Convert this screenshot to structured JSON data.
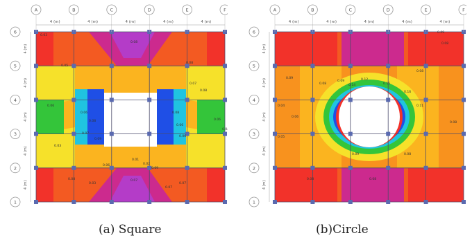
{
  "panels": [
    {
      "id": "a",
      "caption": "(a) Square",
      "opening": "square",
      "col_bubbles": [
        "A",
        "B",
        "C",
        "D",
        "E",
        "F"
      ],
      "row_bubbles": [
        "6",
        "5",
        "4",
        "3",
        "2",
        "1"
      ],
      "top_dims": [
        "4 (m)",
        "4 (m)",
        "4 (m)",
        "4 (m)",
        "4 (m)"
      ],
      "side_dims": [
        "4 (m)",
        "4 (m)",
        "4 (m)",
        "4 (m)",
        "4 (m)"
      ],
      "value_labels": [
        "0.03",
        "0.05",
        "0.08",
        "0.08",
        "0.07",
        "0.08",
        "0.06",
        "0.06",
        "0.08",
        "0.07",
        "0.09",
        "0.08",
        "0.06",
        "0.06",
        "0.06",
        "0.04",
        "0.03",
        "0.01",
        "0.02",
        "0.09",
        "0.06",
        "0.08",
        "0.03",
        "0.07",
        "0.07",
        "0.07"
      ]
    },
    {
      "id": "b",
      "caption": "(b)Circle",
      "opening": "circle",
      "col_bubbles": [
        "A",
        "B",
        "C",
        "D",
        "E",
        "F"
      ],
      "row_bubbles": [
        "6",
        "5",
        "4",
        "3",
        "2",
        "1"
      ],
      "top_dims": [
        "4 (m)",
        "4 (m)",
        "4 (m)",
        "4 (m)",
        "4 (m)"
      ],
      "side_dims": [
        "4 (m)",
        "4 (m)",
        "4 (m)",
        "4 (m)",
        "4 (m)"
      ],
      "value_labels": [
        "0.09",
        "0.08",
        "0.09",
        "0.09",
        "0.08",
        "0.08",
        "0.12",
        "0.14",
        "0.15",
        "0.16",
        "0.04",
        "0.11",
        "0.06",
        "0.08",
        "0.05",
        "0.09",
        "0.08",
        "0.08",
        "0.08"
      ]
    }
  ],
  "colors": {
    "red": "#f2322a",
    "orange_red": "#f35a22",
    "orange": "#f8921e",
    "amber": "#fbb41f",
    "yellow": "#f6e12a",
    "pale_yellow": "#f8f060",
    "green": "#34c53a",
    "cyan": "#20c4e0",
    "blue": "#1f4fe6",
    "magenta": "#cc2a8e",
    "purple": "#b43cc8",
    "grid": "#4a4a6a",
    "node": "#5a6ab0"
  }
}
